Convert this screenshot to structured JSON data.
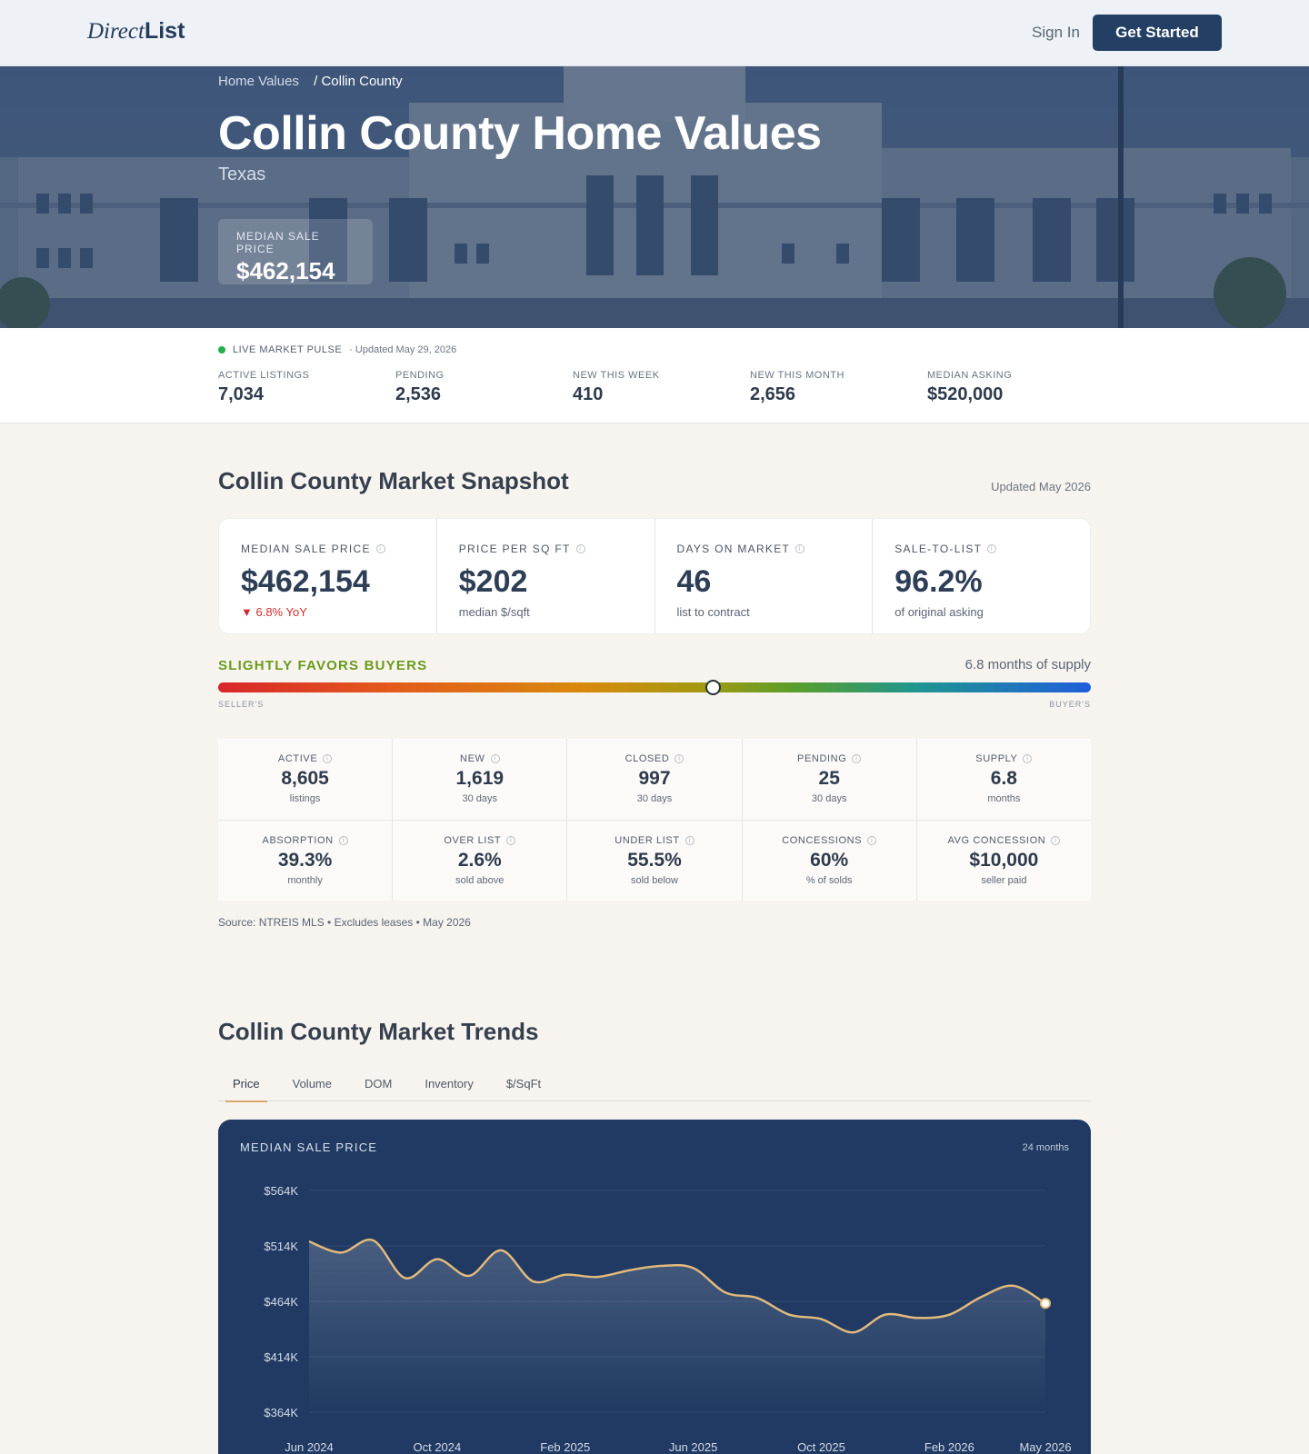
{
  "header": {
    "logo_part1": "Direct",
    "logo_part2": "List",
    "signin_label": "Sign In",
    "cta_label": "Get Started"
  },
  "hero": {
    "breadcrumb": [
      "Home Values",
      "Collin County"
    ],
    "breadcrumb_sep": "/",
    "title": "Collin County Home Values",
    "state": "Texas",
    "median_label": "MEDIAN SALE PRICE",
    "median_value": "$462,154"
  },
  "pulse": {
    "label": "LIVE MARKET PULSE",
    "updated": "· Updated May 29, 2026",
    "stats": [
      {
        "label": "ACTIVE LISTINGS",
        "value": "7,034"
      },
      {
        "label": "PENDING",
        "value": "2,536"
      },
      {
        "label": "NEW THIS WEEK",
        "value": "410"
      },
      {
        "label": "NEW THIS MONTH",
        "value": "2,656"
      },
      {
        "label": "MEDIAN ASKING",
        "value": "$520,000"
      }
    ]
  },
  "snapshot": {
    "title": "Collin County Market Snapshot",
    "updated": "Updated May 2026",
    "cards": [
      {
        "label": "MEDIAN SALE PRICE",
        "value": "$462,154",
        "sub": "▼ 6.8% YoY"
      },
      {
        "label": "PRICE PER SQ FT",
        "value": "$202",
        "sub": "median $/sqft"
      },
      {
        "label": "DAYS ON MARKET",
        "value": "46",
        "sub": "list to contract"
      },
      {
        "label": "SALE-TO-LIST",
        "value": "96.2%",
        "sub": "of original asking"
      }
    ],
    "balance": {
      "label": "SLIGHTLY FAVORS BUYERS",
      "supply_text": "6.8 months of supply",
      "left_label": "SELLER'S",
      "right_label": "BUYER'S",
      "position": 0.567
    },
    "grid": [
      {
        "label": "ACTIVE",
        "value": "8,605",
        "sub": "listings"
      },
      {
        "label": "NEW",
        "value": "1,619",
        "sub": "30 days"
      },
      {
        "label": "CLOSED",
        "value": "997",
        "sub": "30 days"
      },
      {
        "label": "PENDING",
        "value": "25",
        "sub": "30 days"
      },
      {
        "label": "SUPPLY",
        "value": "6.8",
        "sub": "months"
      },
      {
        "label": "ABSORPTION",
        "value": "39.3%",
        "sub": "monthly"
      },
      {
        "label": "OVER LIST",
        "value": "2.6%",
        "sub": "sold above"
      },
      {
        "label": "UNDER LIST",
        "value": "55.5%",
        "sub": "sold below"
      },
      {
        "label": "CONCESSIONS",
        "value": "60%",
        "sub": "% of solds"
      },
      {
        "label": "AVG CONCESSION",
        "value": "$10,000",
        "sub": "seller paid"
      }
    ],
    "source": "Source: NTREIS MLS • Excludes leases • May 2026"
  },
  "trends": {
    "title": "Collin County Market Trends",
    "tabs": [
      "Price",
      "Volume",
      "DOM",
      "Inventory",
      "$/SqFt"
    ],
    "active_tab": 0
  },
  "chart_data": {
    "type": "area",
    "title": "MEDIAN SALE PRICE",
    "range_label": "24 months",
    "y_ticks": [
      "$564K",
      "$514K",
      "$464K",
      "$414K",
      "$364K"
    ],
    "ylim": [
      364000,
      564000
    ],
    "x_ticks": [
      "Jun 2024",
      "Oct 2024",
      "Feb 2025",
      "Jun 2025",
      "Oct 2025",
      "Feb 2026",
      "May 2026"
    ],
    "x": [
      "2024-06",
      "2024-07",
      "2024-08",
      "2024-09",
      "2024-10",
      "2024-11",
      "2024-12",
      "2025-01",
      "2025-02",
      "2025-03",
      "2025-04",
      "2025-05",
      "2025-06",
      "2025-07",
      "2025-08",
      "2025-09",
      "2025-10",
      "2025-11",
      "2025-12",
      "2026-01",
      "2026-02",
      "2026-03",
      "2026-04",
      "2026-05"
    ],
    "values": [
      518000,
      508000,
      519000,
      485000,
      502000,
      487000,
      510000,
      482000,
      488000,
      486000,
      492000,
      496000,
      494000,
      472000,
      467000,
      452000,
      448000,
      436000,
      452000,
      449000,
      452000,
      468000,
      478000,
      462154
    ],
    "colors": {
      "line": "#e1b97c",
      "background": "#203a63"
    }
  }
}
